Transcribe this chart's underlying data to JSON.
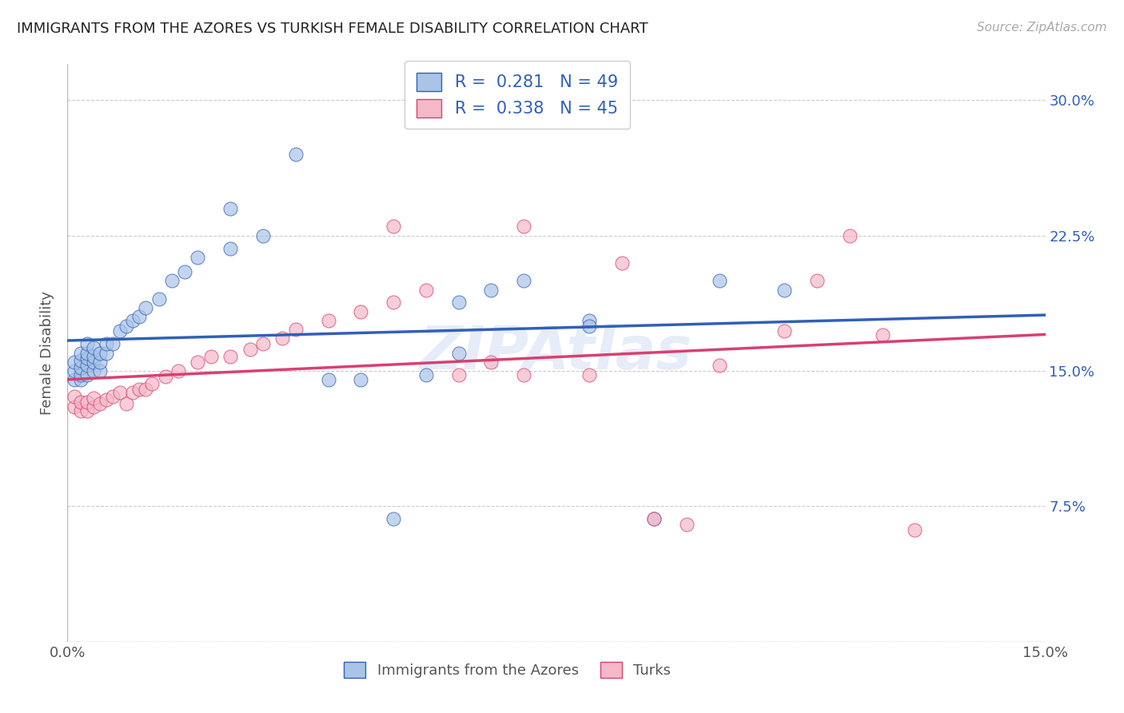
{
  "title": "IMMIGRANTS FROM THE AZORES VS TURKISH FEMALE DISABILITY CORRELATION CHART",
  "source": "Source: ZipAtlas.com",
  "ylabel": "Female Disability",
  "watermark": "ZIPAtlas",
  "x_min": 0.0,
  "x_max": 0.15,
  "y_min": 0.0,
  "y_max": 0.32,
  "series1_label": "Immigrants from the Azores",
  "series2_label": "Turks",
  "series1_R": "0.281",
  "series1_N": "49",
  "series2_R": "0.338",
  "series2_N": "45",
  "series1_color": "#aac4e8",
  "series2_color": "#f5b8c8",
  "series1_line_color": "#3060b8",
  "series2_line_color": "#d84070",
  "background_color": "#ffffff",
  "grid_color": "#cccccc",
  "series1_x": [
    0.001,
    0.001,
    0.001,
    0.002,
    0.002,
    0.002,
    0.002,
    0.002,
    0.003,
    0.003,
    0.003,
    0.003,
    0.003,
    0.004,
    0.004,
    0.004,
    0.004,
    0.005,
    0.005,
    0.005,
    0.006,
    0.006,
    0.007,
    0.008,
    0.009,
    0.01,
    0.011,
    0.012,
    0.014,
    0.016,
    0.018,
    0.02,
    0.025,
    0.03,
    0.04,
    0.045,
    0.05,
    0.055,
    0.06,
    0.065,
    0.07,
    0.08,
    0.09,
    0.1,
    0.035,
    0.025,
    0.06,
    0.08,
    0.11
  ],
  "series1_y": [
    0.145,
    0.15,
    0.155,
    0.145,
    0.148,
    0.152,
    0.156,
    0.16,
    0.148,
    0.153,
    0.157,
    0.16,
    0.165,
    0.15,
    0.155,
    0.158,
    0.163,
    0.15,
    0.155,
    0.16,
    0.16,
    0.165,
    0.165,
    0.172,
    0.175,
    0.178,
    0.18,
    0.185,
    0.19,
    0.2,
    0.205,
    0.213,
    0.218,
    0.225,
    0.145,
    0.145,
    0.068,
    0.148,
    0.16,
    0.195,
    0.2,
    0.178,
    0.068,
    0.2,
    0.27,
    0.24,
    0.188,
    0.175,
    0.195
  ],
  "series2_x": [
    0.001,
    0.001,
    0.002,
    0.002,
    0.003,
    0.003,
    0.004,
    0.004,
    0.005,
    0.006,
    0.007,
    0.008,
    0.009,
    0.01,
    0.011,
    0.012,
    0.013,
    0.015,
    0.017,
    0.02,
    0.022,
    0.025,
    0.028,
    0.03,
    0.033,
    0.035,
    0.04,
    0.045,
    0.05,
    0.055,
    0.06,
    0.065,
    0.07,
    0.08,
    0.085,
    0.09,
    0.095,
    0.1,
    0.11,
    0.115,
    0.12,
    0.125,
    0.05,
    0.07,
    0.13
  ],
  "series2_y": [
    0.13,
    0.136,
    0.128,
    0.133,
    0.128,
    0.133,
    0.13,
    0.135,
    0.132,
    0.134,
    0.136,
    0.138,
    0.132,
    0.138,
    0.14,
    0.14,
    0.143,
    0.147,
    0.15,
    0.155,
    0.158,
    0.158,
    0.162,
    0.165,
    0.168,
    0.173,
    0.178,
    0.183,
    0.188,
    0.195,
    0.148,
    0.155,
    0.148,
    0.148,
    0.21,
    0.068,
    0.065,
    0.153,
    0.172,
    0.2,
    0.225,
    0.17,
    0.23,
    0.23,
    0.062
  ]
}
